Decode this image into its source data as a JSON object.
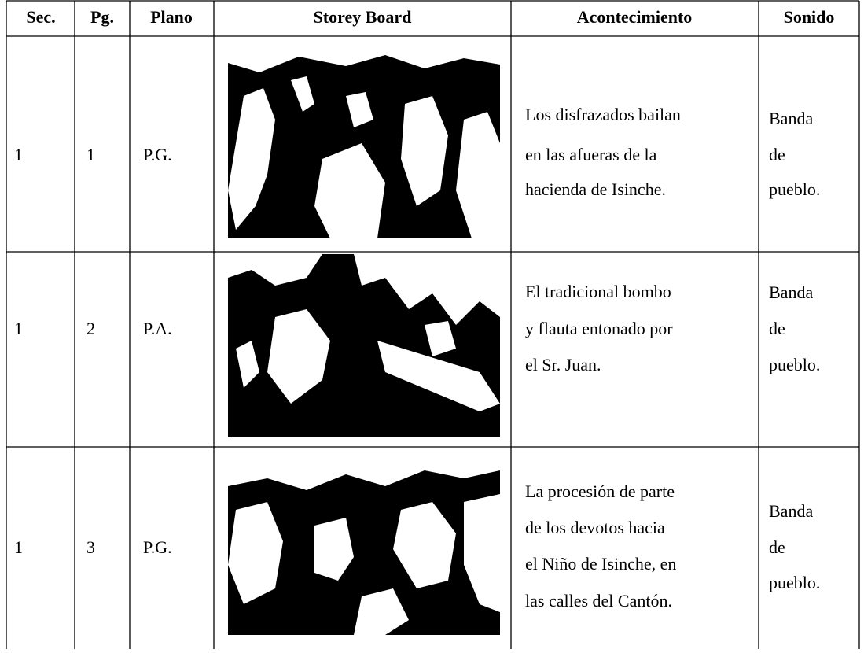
{
  "table": {
    "headers": [
      "Sec.",
      "Pg.",
      "Plano",
      "Storey Board",
      "Acontecimiento",
      "Sonido"
    ],
    "rows": [
      {
        "sec": "1",
        "pg": "1",
        "plano": "P.G.",
        "acontecimiento": [
          "Los disfrazados bailan",
          "en las afueras de la",
          "hacienda de Isinche."
        ],
        "sonido": [
          "Banda",
          "de",
          "pueblo."
        ]
      },
      {
        "sec": "1",
        "pg": "2",
        "plano": "P.A.",
        "acontecimiento": [
          "El tradicional bombo",
          "y flauta entonado por",
          "el Sr. Juan."
        ],
        "sonido": [
          "Banda",
          "de",
          "pueblo."
        ]
      },
      {
        "sec": "1",
        "pg": "3",
        "plano": "P.G.",
        "acontecimiento": [
          "La procesión de parte",
          "de los devotos hacia",
          "el Niño de Isinche, en",
          "las calles del Cantón."
        ],
        "sonido": [
          "Banda",
          "de",
          "pueblo."
        ]
      }
    ]
  }
}
